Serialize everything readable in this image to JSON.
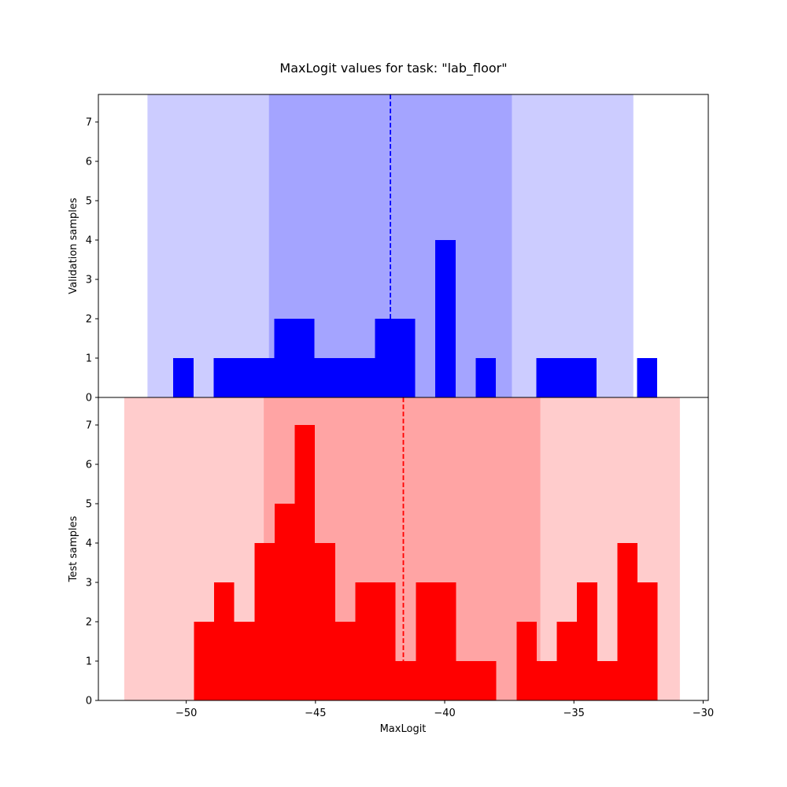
{
  "chart_data": {
    "type": "histogram",
    "title": "MaxLogit values for task: \"lab_floor\"",
    "xlabel": "MaxLogit",
    "xlim": [
      -53.4,
      -29.8
    ],
    "xticks": [
      -50,
      -45,
      -40,
      -35,
      -30
    ],
    "xtick_labels": [
      "−50",
      "−45",
      "−40",
      "−35",
      "−30"
    ],
    "bin_width": 0.78,
    "panels": [
      {
        "name": "validation",
        "ylabel": "Validation samples",
        "ylim": [
          0,
          7.7
        ],
        "yticks": [
          0,
          1,
          2,
          3,
          4,
          5,
          6,
          7
        ],
        "color": "#0000ff",
        "mean": -42.1,
        "band_inner": [
          -46.8,
          -37.4
        ],
        "band_outer": [
          -51.5,
          -32.7
        ],
        "band_inner_color": "#a4a4ff",
        "band_outer_color": "#ccccff",
        "bins": [
          {
            "x0": -50.5,
            "x1": -49.72,
            "count": 1
          },
          {
            "x0": -48.94,
            "x1": -48.16,
            "count": 1
          },
          {
            "x0": -48.16,
            "x1": -47.38,
            "count": 1
          },
          {
            "x0": -47.38,
            "x1": -46.6,
            "count": 1
          },
          {
            "x0": -46.6,
            "x1": -45.82,
            "count": 2
          },
          {
            "x0": -45.82,
            "x1": -45.04,
            "count": 2
          },
          {
            "x0": -45.04,
            "x1": -44.26,
            "count": 1
          },
          {
            "x0": -44.26,
            "x1": -43.48,
            "count": 1
          },
          {
            "x0": -43.48,
            "x1": -42.7,
            "count": 1
          },
          {
            "x0": -42.7,
            "x1": -41.92,
            "count": 2
          },
          {
            "x0": -41.92,
            "x1": -41.14,
            "count": 2
          },
          {
            "x0": -40.36,
            "x1": -39.58,
            "count": 4
          },
          {
            "x0": -38.8,
            "x1": -38.02,
            "count": 1
          },
          {
            "x0": -36.46,
            "x1": -35.68,
            "count": 1
          },
          {
            "x0": -35.68,
            "x1": -34.9,
            "count": 1
          },
          {
            "x0": -34.9,
            "x1": -34.12,
            "count": 1
          },
          {
            "x0": -32.56,
            "x1": -31.78,
            "count": 1
          }
        ]
      },
      {
        "name": "test",
        "ylabel": "Test samples",
        "ylim": [
          0,
          7.7
        ],
        "yticks": [
          0,
          1,
          2,
          3,
          4,
          5,
          6,
          7
        ],
        "color": "#ff0000",
        "mean": -41.6,
        "band_inner": [
          -47.0,
          -36.3
        ],
        "band_outer": [
          -52.4,
          -30.9
        ],
        "band_inner_color": "#ffa4a4",
        "band_outer_color": "#ffcccc",
        "bins": [
          {
            "x0": -49.7,
            "x1": -48.92,
            "count": 2
          },
          {
            "x0": -48.92,
            "x1": -48.14,
            "count": 3
          },
          {
            "x0": -48.14,
            "x1": -47.36,
            "count": 2
          },
          {
            "x0": -47.36,
            "x1": -46.58,
            "count": 4
          },
          {
            "x0": -46.58,
            "x1": -45.8,
            "count": 5
          },
          {
            "x0": -45.8,
            "x1": -45.02,
            "count": 7
          },
          {
            "x0": -45.02,
            "x1": -44.24,
            "count": 4
          },
          {
            "x0": -44.24,
            "x1": -43.46,
            "count": 2
          },
          {
            "x0": -43.46,
            "x1": -42.68,
            "count": 3
          },
          {
            "x0": -42.68,
            "x1": -41.9,
            "count": 3
          },
          {
            "x0": -41.9,
            "x1": -41.12,
            "count": 1
          },
          {
            "x0": -41.12,
            "x1": -40.34,
            "count": 3
          },
          {
            "x0": -40.34,
            "x1": -39.56,
            "count": 3
          },
          {
            "x0": -39.56,
            "x1": -38.78,
            "count": 1
          },
          {
            "x0": -38.78,
            "x1": -38.0,
            "count": 1
          },
          {
            "x0": -37.22,
            "x1": -36.44,
            "count": 2
          },
          {
            "x0": -36.44,
            "x1": -35.66,
            "count": 1
          },
          {
            "x0": -35.66,
            "x1": -34.88,
            "count": 2
          },
          {
            "x0": -34.88,
            "x1": -34.1,
            "count": 3
          },
          {
            "x0": -34.1,
            "x1": -33.32,
            "count": 1
          },
          {
            "x0": -33.32,
            "x1": -32.54,
            "count": 4
          },
          {
            "x0": -32.54,
            "x1": -31.76,
            "count": 3
          }
        ]
      }
    ]
  }
}
